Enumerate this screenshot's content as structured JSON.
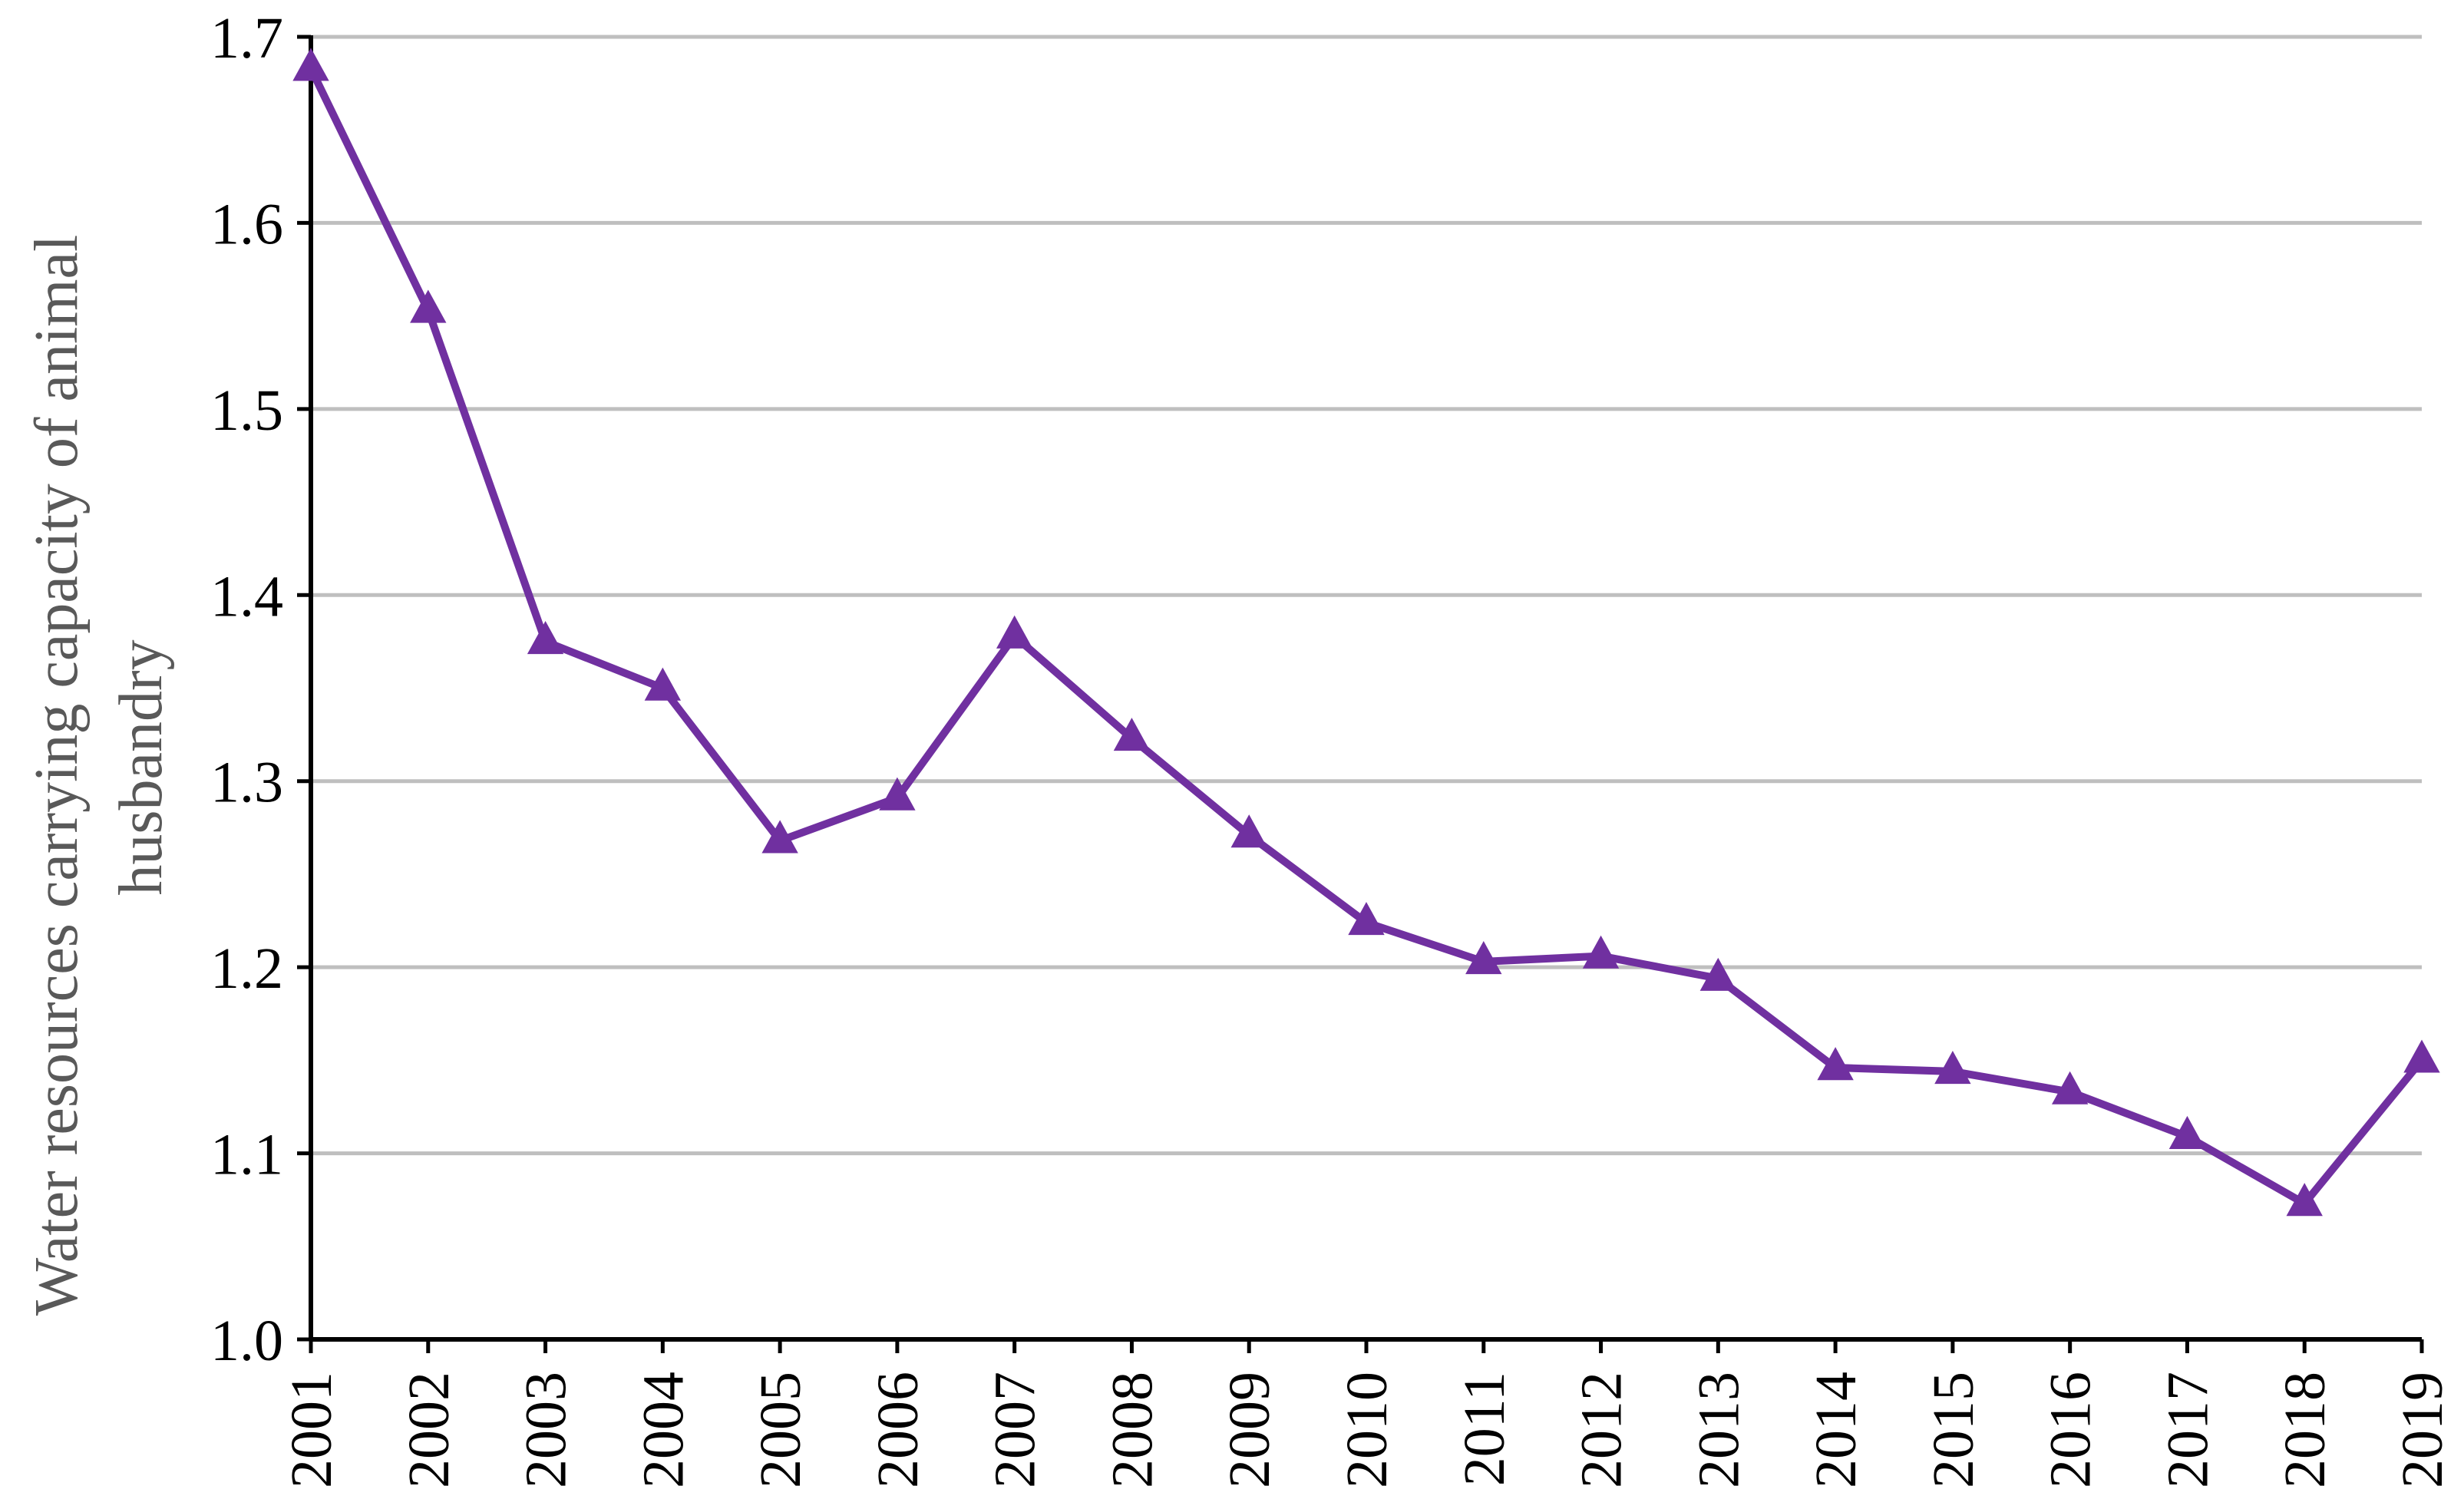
{
  "chart_data": {
    "type": "line",
    "title": "",
    "xlabel": "",
    "ylabel_lines": [
      "Water resources carrying capacity of animal",
      "husbandry"
    ],
    "categories": [
      "2001",
      "2002",
      "2003",
      "2004",
      "2005",
      "2006",
      "2007",
      "2008",
      "2009",
      "2010",
      "2011",
      "2012",
      "2013",
      "2014",
      "2015",
      "2016",
      "2017",
      "2018",
      "2019"
    ],
    "series": [
      {
        "values": [
          1.683,
          1.553,
          1.375,
          1.35,
          1.268,
          1.291,
          1.378,
          1.323,
          1.271,
          1.224,
          1.203,
          1.206,
          1.194,
          1.146,
          1.144,
          1.133,
          1.109,
          1.073,
          1.15
        ],
        "color": "#7030A0",
        "marker": "triangle"
      }
    ],
    "ylim": [
      1.0,
      1.7
    ],
    "yticks": [
      "1.0",
      "1.1",
      "1.2",
      "1.3",
      "1.4",
      "1.5",
      "1.6",
      "1.7"
    ],
    "grid": true,
    "grid_color": "#BFBFBF",
    "axis_color": "#000000",
    "legend": "none"
  }
}
